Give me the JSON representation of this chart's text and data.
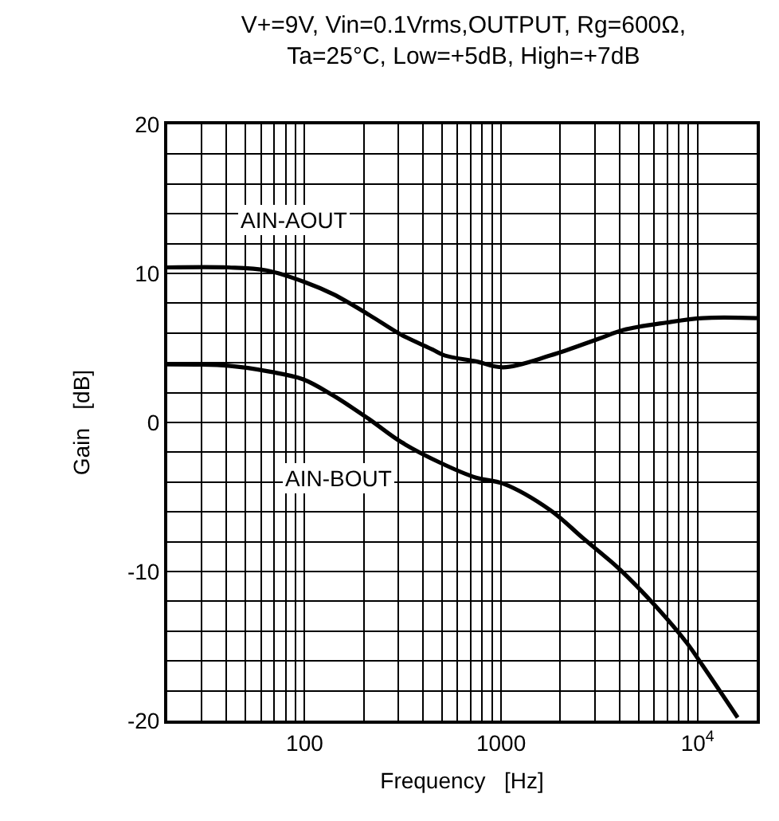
{
  "chart_data": {
    "type": "line",
    "title": "V+=9V, Vin=0.1Vrms,OUTPUT, Rg=600Ω,\nTa=25°C, Low=+5dB, High=+7dB",
    "xlabel": "Frequency   [Hz]",
    "ylabel": "Gain   [dB]",
    "log": "x",
    "xlim": [
      20,
      20000
    ],
    "xticks": [
      100,
      1000,
      {
        "value": 10000,
        "label": "10$^{4}$"
      }
    ],
    "ylim": [
      -20,
      20
    ],
    "yticks": [
      -20,
      -10,
      0,
      10,
      20
    ],
    "grid": true,
    "legend": false,
    "marker": "none",
    "line_style": "solid",
    "series": [
      {
        "name": "AIN-AOUT",
        "color": "#000000",
        "x": [
          20,
          41,
          64,
          101,
          140,
          214,
          309,
          447,
          515,
          745,
          1023,
          1788,
          3118,
          4190,
          6930,
          10600,
          20000
        ],
        "values": [
          10.4,
          10.4,
          10.2,
          9.4,
          8.6,
          7.2,
          5.9,
          4.9,
          4.5,
          4.1,
          3.7,
          4.5,
          5.6,
          6.2,
          6.7,
          7.0,
          7.0
        ]
      },
      {
        "name": "AIN-BOUT",
        "color": "#000000",
        "x": [
          20,
          41,
          67,
          98,
          140,
          214,
          309,
          490,
          745,
          1023,
          1788,
          2580,
          3975,
          6095,
          8830,
          10600,
          16000
        ],
        "values": [
          3.9,
          3.8,
          3.4,
          2.9,
          1.8,
          0.2,
          -1.3,
          -2.7,
          -3.7,
          -4.1,
          -5.9,
          -7.7,
          -9.8,
          -12.3,
          -14.8,
          -16.3,
          -19.8
        ]
      }
    ]
  }
}
